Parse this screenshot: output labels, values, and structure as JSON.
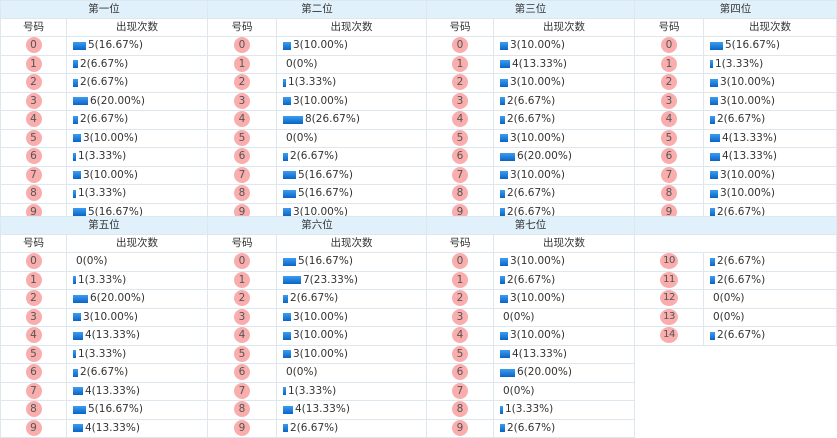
{
  "headers": {
    "number_col": "号码",
    "count_col": "出现次数"
  },
  "colors": {
    "header_bg": "#e1f1fc",
    "ball_bg": "#f9adad",
    "bar_top": "#3c9ef0",
    "bar_bottom": "#0a63c6",
    "border": "#dfe7ee"
  },
  "positions": [
    {
      "title": "第一位",
      "rows": [
        {
          "num": "0",
          "count": 5,
          "label": "5(16.67%)"
        },
        {
          "num": "1",
          "count": 2,
          "label": "2(6.67%)"
        },
        {
          "num": "2",
          "count": 2,
          "label": "2(6.67%)"
        },
        {
          "num": "3",
          "count": 6,
          "label": "6(20.00%)"
        },
        {
          "num": "4",
          "count": 2,
          "label": "2(6.67%)"
        },
        {
          "num": "5",
          "count": 3,
          "label": "3(10.00%)"
        },
        {
          "num": "6",
          "count": 1,
          "label": "1(3.33%)"
        },
        {
          "num": "7",
          "count": 3,
          "label": "3(10.00%)"
        },
        {
          "num": "8",
          "count": 1,
          "label": "1(3.33%)"
        },
        {
          "num": "9",
          "count": 5,
          "label": "5(16.67%)"
        }
      ]
    },
    {
      "title": "第二位",
      "rows": [
        {
          "num": "0",
          "count": 3,
          "label": "3(10.00%)"
        },
        {
          "num": "1",
          "count": 0,
          "label": "0(0%)"
        },
        {
          "num": "2",
          "count": 1,
          "label": "1(3.33%)"
        },
        {
          "num": "3",
          "count": 3,
          "label": "3(10.00%)"
        },
        {
          "num": "4",
          "count": 8,
          "label": "8(26.67%)"
        },
        {
          "num": "5",
          "count": 0,
          "label": "0(0%)"
        },
        {
          "num": "6",
          "count": 2,
          "label": "2(6.67%)"
        },
        {
          "num": "7",
          "count": 5,
          "label": "5(16.67%)"
        },
        {
          "num": "8",
          "count": 5,
          "label": "5(16.67%)"
        },
        {
          "num": "9",
          "count": 3,
          "label": "3(10.00%)"
        }
      ]
    },
    {
      "title": "第三位",
      "rows": [
        {
          "num": "0",
          "count": 3,
          "label": "3(10.00%)"
        },
        {
          "num": "1",
          "count": 4,
          "label": "4(13.33%)"
        },
        {
          "num": "2",
          "count": 3,
          "label": "3(10.00%)"
        },
        {
          "num": "3",
          "count": 2,
          "label": "2(6.67%)"
        },
        {
          "num": "4",
          "count": 2,
          "label": "2(6.67%)"
        },
        {
          "num": "5",
          "count": 3,
          "label": "3(10.00%)"
        },
        {
          "num": "6",
          "count": 6,
          "label": "6(20.00%)"
        },
        {
          "num": "7",
          "count": 3,
          "label": "3(10.00%)"
        },
        {
          "num": "8",
          "count": 2,
          "label": "2(6.67%)"
        },
        {
          "num": "9",
          "count": 2,
          "label": "2(6.67%)"
        }
      ]
    },
    {
      "title": "第四位",
      "rows": [
        {
          "num": "0",
          "count": 5,
          "label": "5(16.67%)"
        },
        {
          "num": "1",
          "count": 1,
          "label": "1(3.33%)"
        },
        {
          "num": "2",
          "count": 3,
          "label": "3(10.00%)"
        },
        {
          "num": "3",
          "count": 3,
          "label": "3(10.00%)"
        },
        {
          "num": "4",
          "count": 2,
          "label": "2(6.67%)"
        },
        {
          "num": "5",
          "count": 4,
          "label": "4(13.33%)"
        },
        {
          "num": "6",
          "count": 4,
          "label": "4(13.33%)"
        },
        {
          "num": "7",
          "count": 3,
          "label": "3(10.00%)"
        },
        {
          "num": "8",
          "count": 3,
          "label": "3(10.00%)"
        },
        {
          "num": "9",
          "count": 2,
          "label": "2(6.67%)"
        }
      ]
    },
    {
      "title": "第五位",
      "rows": [
        {
          "num": "0",
          "count": 0,
          "label": "0(0%)"
        },
        {
          "num": "1",
          "count": 1,
          "label": "1(3.33%)"
        },
        {
          "num": "2",
          "count": 6,
          "label": "6(20.00%)"
        },
        {
          "num": "3",
          "count": 3,
          "label": "3(10.00%)"
        },
        {
          "num": "4",
          "count": 4,
          "label": "4(13.33%)"
        },
        {
          "num": "5",
          "count": 1,
          "label": "1(3.33%)"
        },
        {
          "num": "6",
          "count": 2,
          "label": "2(6.67%)"
        },
        {
          "num": "7",
          "count": 4,
          "label": "4(13.33%)"
        },
        {
          "num": "8",
          "count": 5,
          "label": "5(16.67%)"
        },
        {
          "num": "9",
          "count": 4,
          "label": "4(13.33%)"
        }
      ]
    },
    {
      "title": "第六位",
      "rows": [
        {
          "num": "0",
          "count": 5,
          "label": "5(16.67%)"
        },
        {
          "num": "1",
          "count": 7,
          "label": "7(23.33%)"
        },
        {
          "num": "2",
          "count": 2,
          "label": "2(6.67%)"
        },
        {
          "num": "3",
          "count": 3,
          "label": "3(10.00%)"
        },
        {
          "num": "4",
          "count": 3,
          "label": "3(10.00%)"
        },
        {
          "num": "5",
          "count": 3,
          "label": "3(10.00%)"
        },
        {
          "num": "6",
          "count": 0,
          "label": "0(0%)"
        },
        {
          "num": "7",
          "count": 1,
          "label": "1(3.33%)"
        },
        {
          "num": "8",
          "count": 4,
          "label": "4(13.33%)"
        },
        {
          "num": "9",
          "count": 2,
          "label": "2(6.67%)"
        }
      ]
    },
    {
      "title": "第七位",
      "rows": [
        {
          "num": "0",
          "count": 3,
          "label": "3(10.00%)"
        },
        {
          "num": "1",
          "count": 2,
          "label": "2(6.67%)"
        },
        {
          "num": "2",
          "count": 3,
          "label": "3(10.00%)"
        },
        {
          "num": "3",
          "count": 0,
          "label": "0(0%)"
        },
        {
          "num": "4",
          "count": 3,
          "label": "3(10.00%)"
        },
        {
          "num": "5",
          "count": 4,
          "label": "4(13.33%)"
        },
        {
          "num": "6",
          "count": 6,
          "label": "6(20.00%)"
        },
        {
          "num": "7",
          "count": 0,
          "label": "0(0%)"
        },
        {
          "num": "8",
          "count": 1,
          "label": "1(3.33%)"
        },
        {
          "num": "9",
          "count": 2,
          "label": "2(6.67%)"
        }
      ]
    },
    {
      "title": "",
      "blank_subheader": true,
      "rows": [
        {
          "num": "10",
          "count": 2,
          "label": "2(6.67%)"
        },
        {
          "num": "11",
          "count": 2,
          "label": "2(6.67%)"
        },
        {
          "num": "12",
          "count": 0,
          "label": "0(0%)"
        },
        {
          "num": "13",
          "count": 0,
          "label": "0(0%)"
        },
        {
          "num": "14",
          "count": 2,
          "label": "2(6.67%)"
        }
      ]
    }
  ]
}
